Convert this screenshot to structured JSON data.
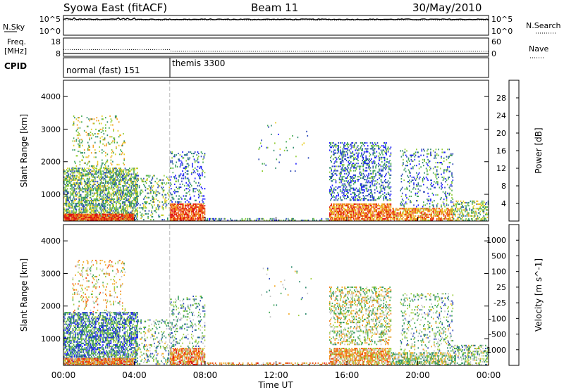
{
  "header": {
    "station": "Syowa East (fitACF)",
    "beam": "Beam 11",
    "date": "30/May/2010"
  },
  "side_labels": {
    "nsky": "N.Sky",
    "freq_line1": "Freq.",
    "freq_line2": "[MHz]",
    "cpid": "CPID",
    "nsearch": "N.Search",
    "nave": "Nave"
  },
  "colors": {
    "power_scale": [
      "#1a1aff",
      "#2b47b8",
      "#2e8b6e",
      "#44aa55",
      "#8fcc33",
      "#e6cc22",
      "#f2a020",
      "#f07818",
      "#e84410",
      "#e01010"
    ],
    "velocity_scale": [
      "#e01010",
      "#f04a10",
      "#f27a18",
      "#f2a822",
      "#c8c8c8",
      "#9fcf40",
      "#44aa55",
      "#2e8b6e",
      "#2b47b8",
      "#1a1aff"
    ],
    "axis": "#000000"
  },
  "chart_data": [
    {
      "type": "line",
      "name": "noise",
      "left_axis_ticks": [
        "10^5",
        "10^0"
      ],
      "right_axis_ticks": [
        "10^5",
        "10^0"
      ],
      "series": [
        {
          "name": "N.Sky",
          "style": "solid",
          "level_log10": 4.3
        },
        {
          "name": "N.Search",
          "style": "dotted",
          "level_log10": 4.1
        }
      ]
    },
    {
      "type": "line",
      "name": "frequency",
      "left_axis_ticks": [
        "18",
        "8"
      ],
      "right_axis_ticks": [
        "60",
        "0"
      ],
      "series": [
        {
          "name": "Freq.",
          "style": "solid",
          "x": [
            "00:00",
            "06:00",
            "24:00"
          ],
          "y": [
            10.5,
            10.5,
            10.5
          ]
        },
        {
          "name": "Nave",
          "style": "dotted",
          "x": [
            "00:00",
            "06:00",
            "06:05",
            "24:00"
          ],
          "y": [
            34,
            34,
            25,
            25
          ]
        }
      ]
    },
    {
      "type": "table",
      "name": "cpid",
      "segments": [
        {
          "label": "normal (fast) 151",
          "start": "00:00"
        },
        {
          "label": "themis 3300",
          "start": "06:00"
        }
      ]
    },
    {
      "type": "heatmap",
      "name": "power",
      "ylabel": "Slant Range [km]",
      "ylim": [
        180,
        4500
      ],
      "yticks": [
        "1000",
        "2000",
        "3000",
        "4000"
      ],
      "colorbar_label": "Power [dB]",
      "colorbar_ticks": [
        "4",
        "8",
        "12",
        "16",
        "20",
        "24",
        "28"
      ],
      "colorbar_range": [
        0,
        30
      ],
      "scatter_clusters": [
        {
          "t0": 0.0,
          "t1": 4.2,
          "r0": 200,
          "r1": 1800,
          "density": 0.55,
          "level": 0.35
        },
        {
          "t0": 0.5,
          "t1": 3.5,
          "r0": 1800,
          "r1": 3400,
          "density": 0.12,
          "level": 0.45
        },
        {
          "t0": 0.0,
          "t1": 4.0,
          "r0": 180,
          "r1": 420,
          "density": 0.9,
          "level": 0.85
        },
        {
          "t0": 4.0,
          "t1": 6.0,
          "r0": 200,
          "r1": 1600,
          "density": 0.2,
          "level": 0.35
        },
        {
          "t0": 6.0,
          "t1": 8.0,
          "r0": 180,
          "r1": 700,
          "density": 0.75,
          "level": 0.85
        },
        {
          "t0": 6.0,
          "t1": 8.0,
          "r0": 700,
          "r1": 2300,
          "density": 0.18,
          "level": 0.2
        },
        {
          "t0": 8.0,
          "t1": 15.0,
          "r0": 180,
          "r1": 260,
          "density": 0.35,
          "level": 0.25
        },
        {
          "t0": 11.0,
          "t1": 14.0,
          "r0": 1600,
          "r1": 3200,
          "density": 0.02,
          "level": 0.3
        },
        {
          "t0": 15.0,
          "t1": 18.5,
          "r0": 800,
          "r1": 2600,
          "density": 0.3,
          "level": 0.2
        },
        {
          "t0": 15.0,
          "t1": 18.5,
          "r0": 180,
          "r1": 700,
          "density": 0.7,
          "level": 0.75
        },
        {
          "t0": 18.5,
          "t1": 22.0,
          "r0": 180,
          "r1": 600,
          "density": 0.6,
          "level": 0.7
        },
        {
          "t0": 19.0,
          "t1": 22.0,
          "r0": 600,
          "r1": 2400,
          "density": 0.15,
          "level": 0.25
        },
        {
          "t0": 22.0,
          "t1": 24.0,
          "r0": 180,
          "r1": 800,
          "density": 0.35,
          "level": 0.4
        }
      ]
    },
    {
      "type": "heatmap",
      "name": "velocity",
      "ylabel": "Slant Range [km]",
      "ylim": [
        180,
        4500
      ],
      "yticks": [
        "1000",
        "2000",
        "3000",
        "4000"
      ],
      "colorbar_label": "Velocity [m s^-1]",
      "colorbar_ticks": [
        "-1000",
        "-500",
        "-100",
        "-25",
        "25",
        "100",
        "500",
        "1000"
      ],
      "colorbar_range": [
        -1250,
        1250
      ],
      "scatter_clusters": [
        {
          "t0": 0.0,
          "t1": 4.2,
          "r0": 200,
          "r1": 1800,
          "density": 0.55,
          "level": 0.75
        },
        {
          "t0": 0.5,
          "t1": 3.5,
          "r0": 1800,
          "r1": 3400,
          "density": 0.12,
          "level": 0.4
        },
        {
          "t0": 0.0,
          "t1": 4.0,
          "r0": 180,
          "r1": 420,
          "density": 0.9,
          "level": 0.3
        },
        {
          "t0": 4.0,
          "t1": 6.0,
          "r0": 200,
          "r1": 1600,
          "density": 0.2,
          "level": 0.6
        },
        {
          "t0": 6.0,
          "t1": 8.0,
          "r0": 180,
          "r1": 700,
          "density": 0.75,
          "level": 0.3
        },
        {
          "t0": 6.0,
          "t1": 8.0,
          "r0": 700,
          "r1": 2300,
          "density": 0.18,
          "level": 0.65
        },
        {
          "t0": 8.0,
          "t1": 15.0,
          "r0": 180,
          "r1": 260,
          "density": 0.35,
          "level": 0.3
        },
        {
          "t0": 11.0,
          "t1": 14.0,
          "r0": 1600,
          "r1": 3200,
          "density": 0.02,
          "level": 0.6
        },
        {
          "t0": 15.0,
          "t1": 18.5,
          "r0": 800,
          "r1": 2600,
          "density": 0.3,
          "level": 0.5
        },
        {
          "t0": 15.0,
          "t1": 18.5,
          "r0": 180,
          "r1": 700,
          "density": 0.7,
          "level": 0.35
        },
        {
          "t0": 18.5,
          "t1": 22.0,
          "r0": 180,
          "r1": 600,
          "density": 0.6,
          "level": 0.55
        },
        {
          "t0": 19.0,
          "t1": 22.0,
          "r0": 600,
          "r1": 2400,
          "density": 0.15,
          "level": 0.6
        },
        {
          "t0": 22.0,
          "t1": 24.0,
          "r0": 180,
          "r1": 800,
          "density": 0.35,
          "level": 0.6
        }
      ]
    }
  ],
  "time_axis": {
    "xlabel": "Time UT",
    "ticks": [
      "00:00",
      "04:00",
      "08:00",
      "12:00",
      "16:00",
      "20:00",
      "00:00"
    ],
    "range_hours": [
      0,
      24
    ]
  }
}
